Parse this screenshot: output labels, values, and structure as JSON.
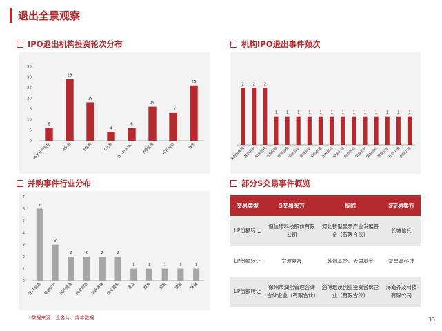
{
  "page": {
    "title": "退出全景观察",
    "source_note": "*数据来源：企名片、烯牛数据",
    "page_number": "33"
  },
  "colors": {
    "red": "#b52a2e",
    "gray": "#a6a6a6"
  },
  "chart_data": [
    {
      "type": "bar",
      "title": "IPO退出机构投资轮次分布",
      "categories": [
        "种子及天使轮",
        "A轮系",
        "B轮系",
        "C轮系",
        "D—Pre-IPO",
        "战略投资",
        "股权投资",
        "其他"
      ],
      "values": [
        6,
        29,
        18,
        4,
        6,
        16,
        13,
        26
      ],
      "ylim": [
        0,
        35
      ],
      "yticks": [
        "0",
        "5",
        "10",
        "15",
        "20",
        "25",
        "30",
        "35"
      ],
      "grid": false
    },
    {
      "type": "bar",
      "title": "机构IPO退出事件频次",
      "categories": [
        "深创投集团",
        "基石资本",
        "华润创投",
        "达晨财智",
        "启明创投",
        "中金资本",
        "高瓴资本",
        "中科创星",
        "元禾原点",
        "中金公司",
        "同创伟业",
        "华盖资本",
        "国投创业",
        "君联资本",
        "红杉中国",
        "创新工场"
      ],
      "values": [
        2,
        2,
        2,
        1,
        1,
        1,
        1,
        1,
        1,
        1,
        1,
        1,
        1,
        1,
        1,
        1
      ],
      "ylim": [
        0,
        3
      ],
      "yticks": [
        "0",
        "1",
        "2",
        "3"
      ],
      "grid": false
    },
    {
      "type": "bar",
      "title": "并购事件行业分布",
      "categories": [
        "生产制造",
        "能源矿产",
        "医疗健康",
        "先进制造",
        "文娱传媒",
        "企业服务",
        "农业",
        "教育",
        "金融",
        "建筑",
        "环保"
      ],
      "values": [
        6,
        3,
        2,
        2,
        2,
        2,
        1,
        1,
        1,
        1,
        1
      ],
      "ylim": [
        0,
        7
      ],
      "yticks": [
        "0",
        "1",
        "2",
        "3",
        "4",
        "5",
        "6",
        "7"
      ],
      "grid": false
    },
    {
      "type": "table",
      "title": "部分S交易事件概览",
      "columns": [
        "交易类型",
        "S交易买方",
        "标的",
        "S交易卖方"
      ],
      "rows": [
        [
          "LP份额转让",
          "恒信诺科技股份有限公司",
          "河北新型显示产业发展基金（有限合伙）",
          "长城信托"
        ],
        [
          "LP份额转让",
          "宁波复晟",
          "苏州基金、天津基金",
          "复星高科技"
        ],
        [
          "LP份额转让",
          "徐州市润熙管理咨询合伙企业（有限合伙）",
          "淄博琨茂创业投资合伙企业（有限合伙）",
          "海南齐及科技有限公司"
        ]
      ]
    }
  ]
}
